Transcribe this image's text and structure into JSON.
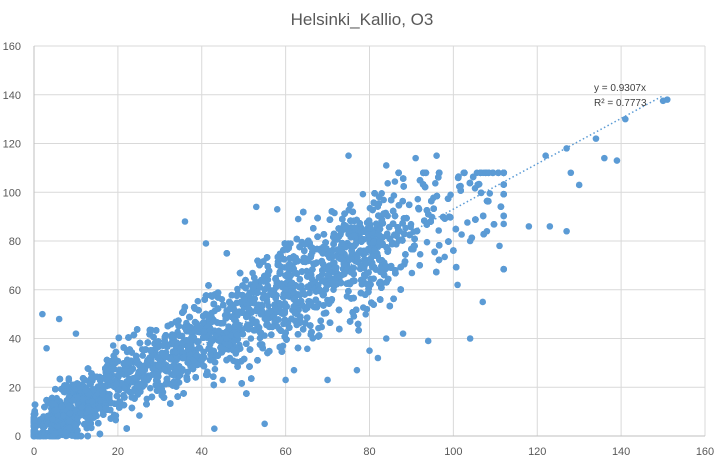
{
  "chart_data": {
    "type": "scatter",
    "title": "Helsinki_Kallio, O3",
    "xlabel": "",
    "ylabel": "",
    "xlim": [
      0,
      160
    ],
    "ylim": [
      0,
      160
    ],
    "x_ticks": [
      0,
      20,
      40,
      60,
      80,
      100,
      120,
      140,
      160
    ],
    "y_ticks": [
      0,
      20,
      40,
      60,
      80,
      100,
      120,
      140,
      160
    ],
    "grid": true,
    "legend": "none",
    "marker_color": "#5b9bd5",
    "trendline": {
      "type": "linear-through-origin",
      "slope": 0.9307,
      "equation_label": "y = 0.9307x",
      "r2_label": "R² = 0.7773",
      "x_range": [
        0,
        150
      ]
    },
    "points": {
      "count_estimate": 6000,
      "x_range": [
        0,
        150
      ],
      "y_range": [
        0,
        138
      ],
      "description_of_spread": "dense cloud along y≈0.93x",
      "outliers": [
        [
          151,
          138
        ],
        [
          150,
          137.5
        ],
        [
          141,
          130
        ],
        [
          134,
          122
        ],
        [
          127,
          118
        ],
        [
          122,
          115
        ],
        [
          136,
          114
        ],
        [
          139,
          113
        ],
        [
          128,
          108
        ],
        [
          130,
          103
        ],
        [
          127,
          84
        ],
        [
          123,
          86
        ],
        [
          118,
          86
        ],
        [
          112,
          87
        ],
        [
          108,
          84
        ],
        [
          111,
          78
        ],
        [
          104,
          80
        ],
        [
          99,
          90
        ],
        [
          94,
          39
        ],
        [
          36,
          88
        ],
        [
          41,
          79
        ],
        [
          53,
          94
        ],
        [
          58,
          93
        ],
        [
          63,
          89
        ],
        [
          75,
          115
        ],
        [
          84,
          111
        ],
        [
          91,
          114
        ],
        [
          96,
          115
        ],
        [
          10,
          42
        ],
        [
          6,
          48
        ],
        [
          3,
          36
        ],
        [
          43,
          3
        ],
        [
          55,
          5
        ],
        [
          45,
          23
        ],
        [
          62,
          27
        ],
        [
          60,
          23
        ],
        [
          70,
          23
        ],
        [
          82,
          32
        ],
        [
          84,
          40
        ],
        [
          88,
          42
        ],
        [
          77,
          27
        ],
        [
          80,
          35
        ],
        [
          104,
          40
        ],
        [
          107,
          55
        ],
        [
          101,
          62
        ],
        [
          2,
          50
        ],
        [
          5,
          1
        ],
        [
          1,
          1
        ],
        [
          0,
          2
        ],
        [
          2,
          4
        ]
      ]
    }
  }
}
